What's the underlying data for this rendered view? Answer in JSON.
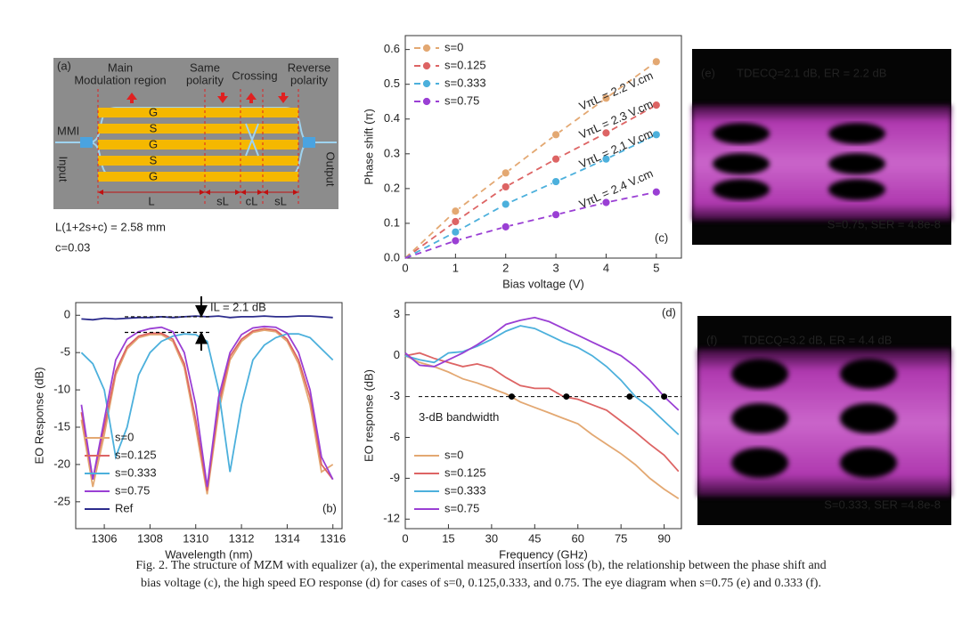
{
  "diagram": {
    "panel_label": "(a)",
    "region_labels": [
      [
        "Main",
        "Modulation region"
      ],
      [
        "Same",
        "polarity"
      ],
      [
        "Crossing"
      ],
      [
        "Reverse",
        "polarity"
      ]
    ],
    "mmi": "MMI",
    "input": "Input",
    "output": "Output",
    "electrodes": [
      "G",
      "S",
      "G",
      "S",
      "G"
    ],
    "length_labels": [
      "L",
      "sL",
      "cL",
      "sL"
    ],
    "formula": "L(1+2s+c) = 2.58 mm",
    "c_value": "c=0.03"
  },
  "chart_data": [
    {
      "type": "line",
      "panel_label": "(b)",
      "x_label": "Wavelength (nm)",
      "y_label": "EO Response (dB)",
      "annotation": "IL = 2.1 dB",
      "il_lines": [
        -0.2,
        -2.3
      ],
      "x": [
        1305,
        1305.5,
        1306,
        1306.5,
        1307,
        1307.5,
        1308,
        1308.5,
        1309,
        1309.5,
        1310,
        1310.5,
        1311,
        1311.5,
        1312,
        1312.5,
        1313,
        1313.5,
        1314,
        1314.5,
        1315,
        1315.5,
        1316
      ],
      "series": [
        {
          "name": "s=0",
          "color": "#e3a872",
          "values": [
            -14,
            -23,
            -16,
            -8,
            -4.5,
            -3,
            -2.6,
            -2.6,
            -3.5,
            -7,
            -15,
            -24,
            -13,
            -6,
            -3.5,
            -2.3,
            -2,
            -2.2,
            -3.5,
            -6.5,
            -12,
            -21,
            -20
          ]
        },
        {
          "name": "s=0.125",
          "color": "#dd6464",
          "values": [
            -13,
            -22,
            -15,
            -7.5,
            -4.2,
            -2.8,
            -2.4,
            -2.4,
            -3.2,
            -6.5,
            -14,
            -23.5,
            -12,
            -5.5,
            -3.2,
            -2.1,
            -1.8,
            -2,
            -3.2,
            -6,
            -11,
            -20,
            -22
          ]
        },
        {
          "name": "s=0.333",
          "color": "#4cb0dc",
          "values": [
            -5,
            -6.5,
            -10,
            -19,
            -15,
            -8,
            -5,
            -3.5,
            -2.8,
            -2.5,
            -2.6,
            -3.5,
            -10,
            -21,
            -12,
            -6,
            -4,
            -3,
            -2.5,
            -2.5,
            -3,
            -4.5,
            -6
          ]
        },
        {
          "name": "s=0.75",
          "color": "#9a3fd4",
          "values": [
            -12,
            -22,
            -14,
            -6,
            -3.2,
            -2.2,
            -1.8,
            -1.6,
            -2.2,
            -5,
            -12,
            -23,
            -11,
            -5,
            -2.6,
            -1.7,
            -1.5,
            -1.6,
            -2.4,
            -5,
            -10,
            -19,
            -22
          ]
        },
        {
          "name": "Ref",
          "color": "#2b2b8c",
          "values": [
            -0.5,
            -0.6,
            -0.4,
            -0.5,
            -0.4,
            -0.3,
            -0.3,
            -0.2,
            -0.3,
            -0.2,
            -0.1,
            -0.2,
            -0.1,
            -0.3,
            -0.2,
            -0.2,
            -0.1,
            -0.2,
            -0.2,
            -0.1,
            -0.1,
            -0.2,
            -0.3
          ]
        }
      ],
      "xlim": [
        1304.75,
        1316.4
      ],
      "ylim": [
        -28.6,
        1.7
      ],
      "xticks": [
        1306,
        1308,
        1310,
        1312,
        1314,
        1316
      ],
      "yticks": [
        0,
        -5,
        -10,
        -15,
        -20,
        -25
      ],
      "legend": "lower left",
      "line_style": "solid",
      "markers": false
    },
    {
      "type": "line",
      "panel_label": "(c)",
      "x_label": "Bias voltage (V)",
      "y_label": "Phase shift (π)",
      "x": [
        1,
        2,
        3,
        4,
        5
      ],
      "series": [
        {
          "name": "s=0",
          "color": "#e3a872",
          "fit_label": "VπL = 2.2 V.cm",
          "values": [
            0.135,
            0.245,
            0.355,
            0.46,
            0.565
          ]
        },
        {
          "name": "s=0.125",
          "color": "#dd6464",
          "fit_label": "VπL = 2.3 V.cm",
          "values": [
            0.105,
            0.205,
            0.285,
            0.36,
            0.44
          ]
        },
        {
          "name": "s=0.333",
          "color": "#4cb0dc",
          "fit_label": "VπL = 2.1 V.cm",
          "values": [
            0.075,
            0.155,
            0.22,
            0.285,
            0.355
          ]
        },
        {
          "name": "s=0.75",
          "color": "#9a3fd4",
          "fit_label": "VπL = 2.4 V.cm",
          "values": [
            0.05,
            0.09,
            0.125,
            0.16,
            0.19
          ]
        }
      ],
      "xlim": [
        0,
        5.5
      ],
      "ylim": [
        0,
        0.64
      ],
      "xticks": [
        0,
        1,
        2,
        3,
        4,
        5
      ],
      "yticks": [
        {
          "value": 0,
          "label": "0.0"
        },
        0.1,
        0.2,
        0.3,
        0.4,
        0.5,
        0.6
      ],
      "legend": "upper left",
      "line_style": "dashed",
      "markers": true
    },
    {
      "type": "line",
      "panel_label": "(d)",
      "x_label": "Frequency (GHz)",
      "y_label": "EO response (dB)",
      "annotation": "3-dB bandwidth",
      "reference_line": -3,
      "bandwidth_points": [
        37,
        56,
        78,
        90
      ],
      "x": [
        0,
        5,
        10,
        15,
        20,
        25,
        30,
        35,
        40,
        45,
        50,
        55,
        60,
        65,
        70,
        75,
        80,
        85,
        90,
        95
      ],
      "series": [
        {
          "name": "s=0",
          "color": "#e3a872",
          "values": [
            0,
            -0.5,
            -0.8,
            -1.2,
            -1.7,
            -2,
            -2.4,
            -2.8,
            -3.4,
            -3.8,
            -4.2,
            -4.6,
            -5,
            -5.8,
            -6.5,
            -7.2,
            -8,
            -9,
            -9.8,
            -10.5
          ]
        },
        {
          "name": "s=0.125",
          "color": "#dd6464",
          "values": [
            0,
            0.2,
            -0.2,
            -0.5,
            -0.8,
            -0.6,
            -0.9,
            -1.6,
            -2.2,
            -2.4,
            -2.4,
            -3,
            -3.2,
            -3.6,
            -4,
            -4.8,
            -5.6,
            -6.5,
            -7.3,
            -8.5
          ]
        },
        {
          "name": "s=0.333",
          "color": "#4cb0dc",
          "values": [
            0,
            -0.3,
            -0.5,
            0.2,
            0.3,
            0.7,
            1.2,
            1.8,
            2.2,
            2,
            1.5,
            1,
            0.6,
            0,
            -0.8,
            -1.8,
            -3,
            -3.8,
            -4.8,
            -5.8
          ]
        },
        {
          "name": "s=0.75",
          "color": "#9a3fd4",
          "values": [
            0.2,
            -0.7,
            -0.8,
            -0.3,
            0.2,
            0.8,
            1.5,
            2.3,
            2.6,
            2.8,
            2.5,
            2,
            1.5,
            1,
            0.5,
            0,
            -0.8,
            -1.8,
            -3,
            -4
          ]
        }
      ],
      "xlim": [
        0,
        96
      ],
      "ylim": [
        -12.7,
        3.9
      ],
      "xticks": [
        0,
        15,
        30,
        45,
        60,
        75,
        90
      ],
      "yticks": [
        -12,
        -9,
        -6,
        -3,
        0,
        3
      ],
      "legend": "lower left",
      "line_style": "solid",
      "markers": false
    }
  ],
  "eye_diagrams": [
    {
      "panel_label": "(e)",
      "metrics": "TDECQ=2.1 dB, ER = 2.2 dB",
      "result": "S=0.75, SER = 4.8e-8"
    },
    {
      "panel_label": "(f)",
      "metrics": "TDECQ=3.2 dB, ER = 4.4 dB",
      "result": "S=0.333, SER =4.8e-8"
    }
  ],
  "caption": [
    "Fig. 2. The structure of MZM with equalizer (a), the experimental measured insertion loss (b), the relationship between the phase shift and",
    "bias voltage (c), the high speed EO response (d) for cases of s=0, 0.125,0.333, and 0.75. The eye diagram when s=0.75 (e) and 0.333 (f)."
  ]
}
